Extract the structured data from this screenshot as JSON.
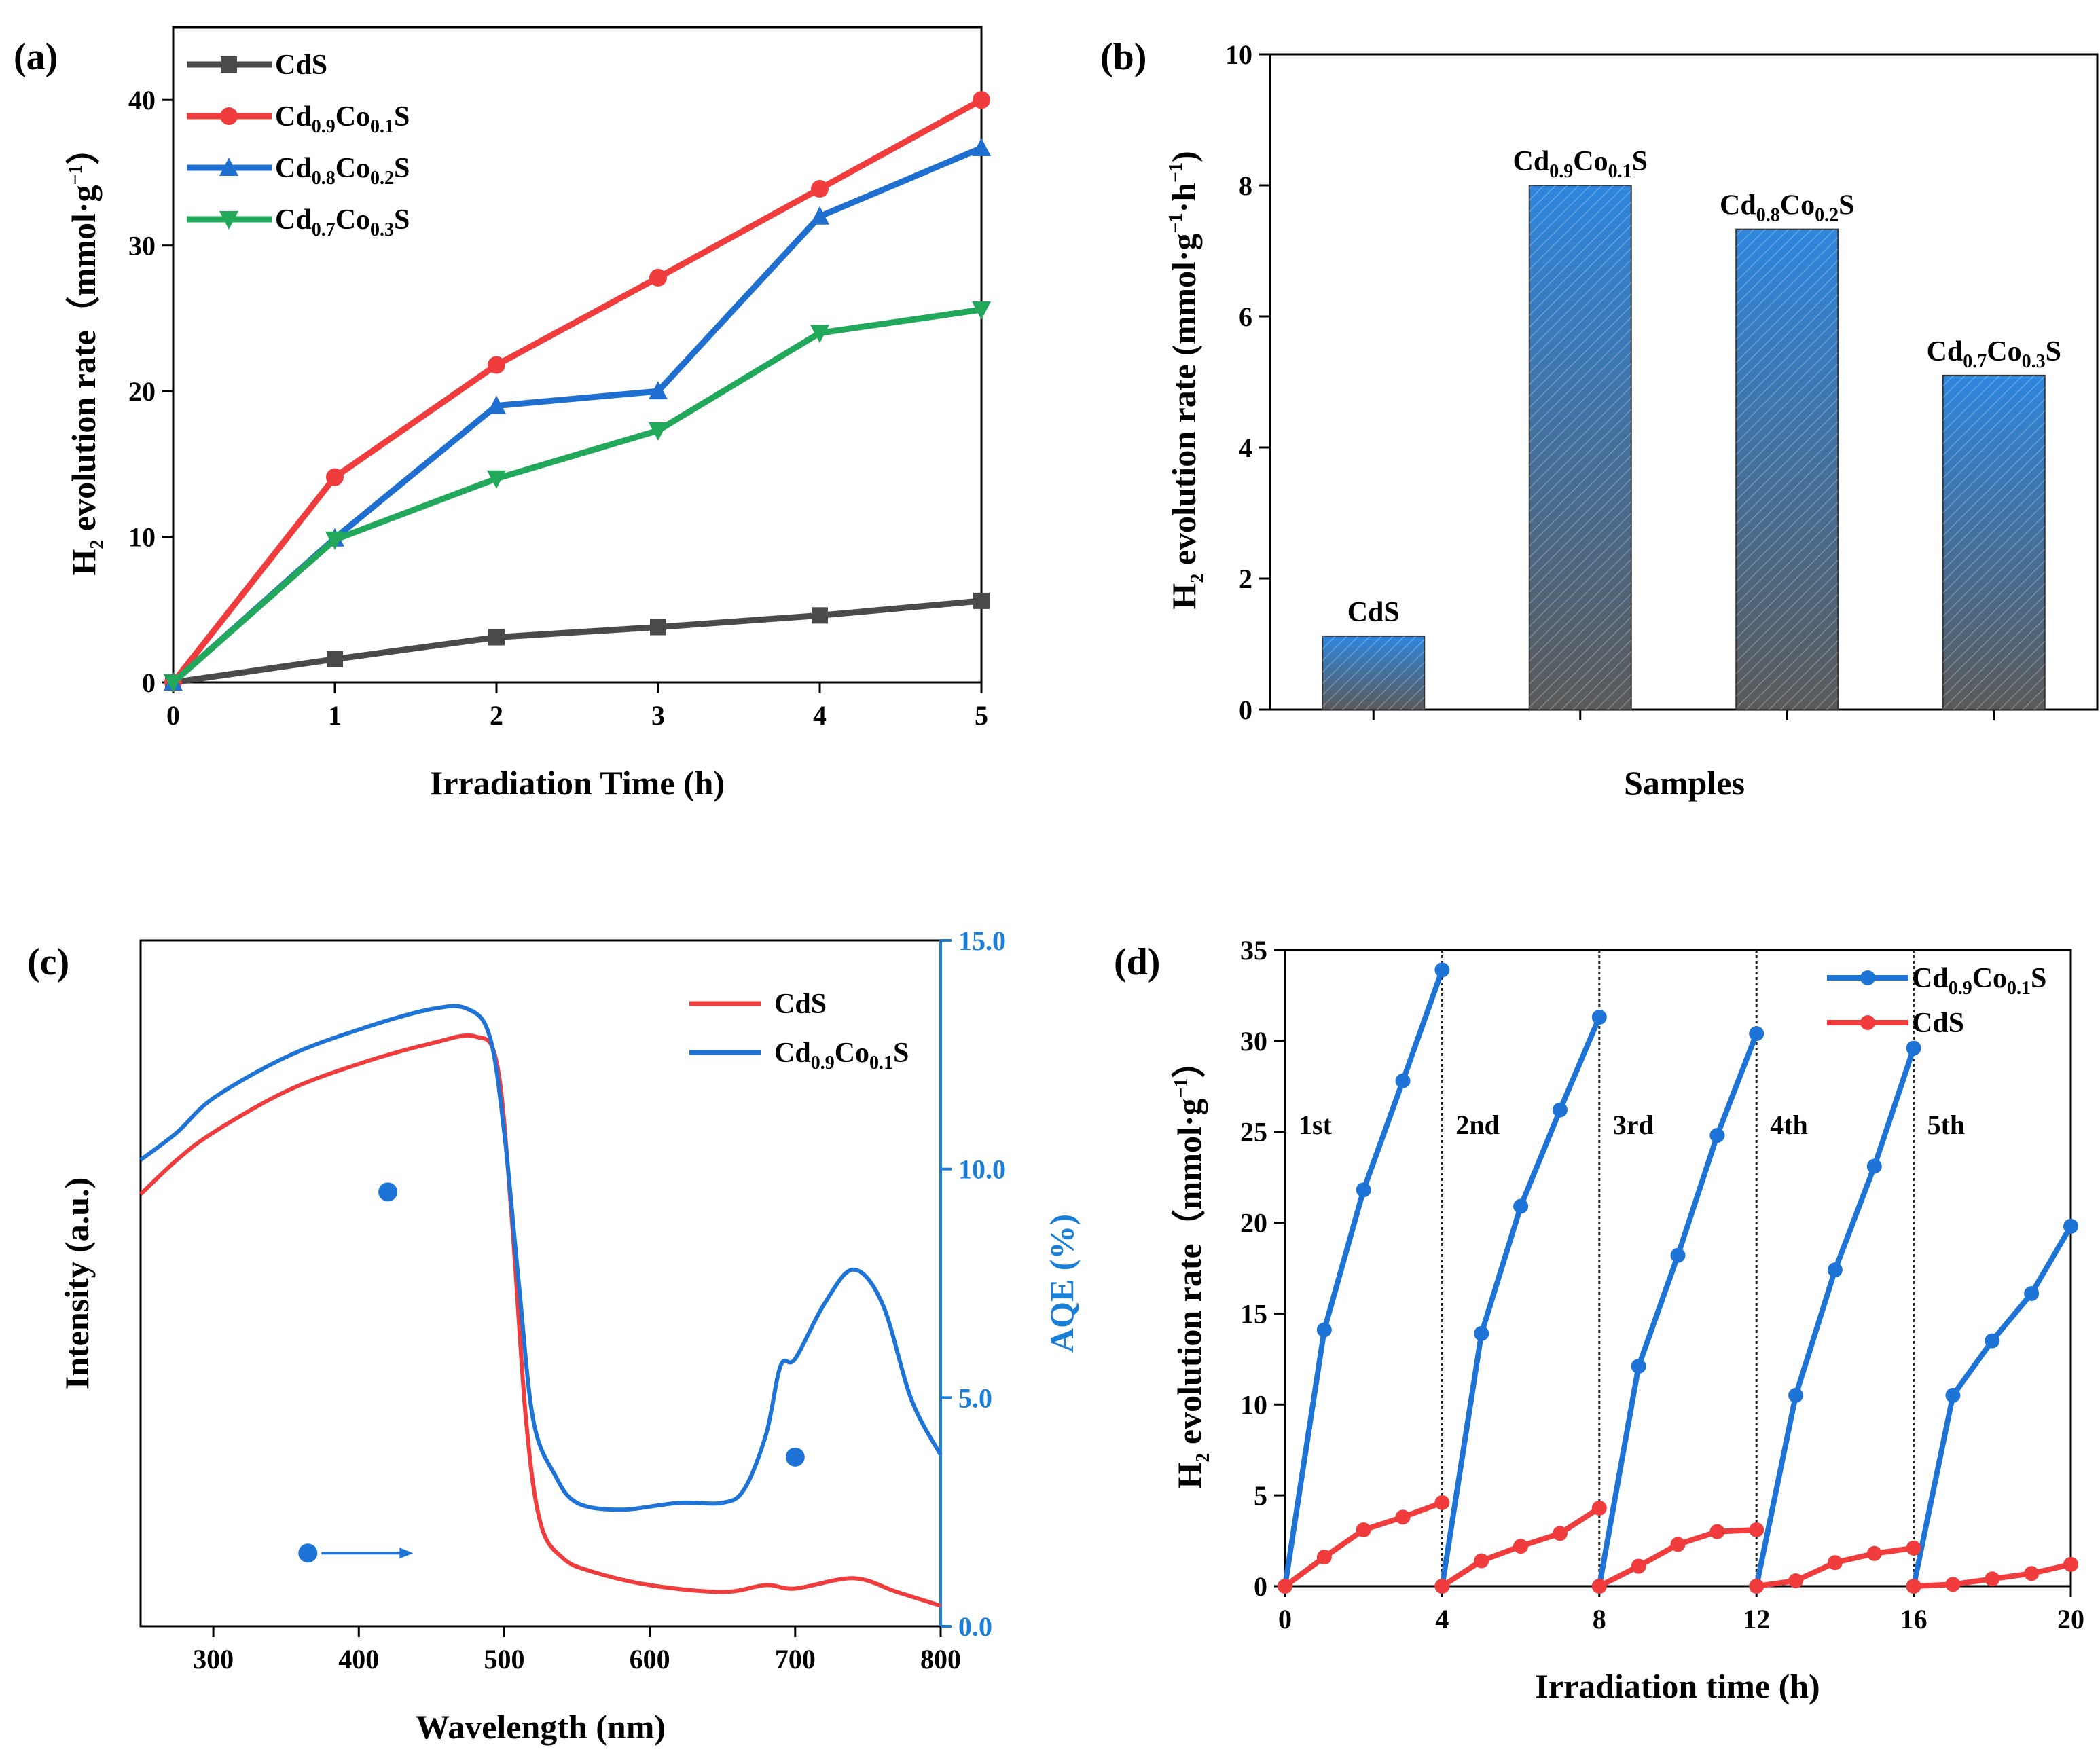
{
  "colors": {
    "cds": "#4a4a4a",
    "co01": "#f03c3c",
    "co02": "#1f6fd1",
    "co03": "#22a85a",
    "blue": "#1e74d6",
    "red": "#f03c3c",
    "aqe_axis": "#1a7fd8",
    "bar_top": "#2e86de",
    "bar_bottom": "#5a5a5a"
  },
  "chart_data": [
    {
      "panel": "(a)",
      "type": "line",
      "xlabel": "Irradiation Time (h)",
      "ylabel": "H2 evolution rate（mmol·g−1）",
      "ylabel_parts": {
        "main": "H",
        "sub": "2",
        "rest": " evolution rate（mmol·g",
        "sup": "−1",
        "end": "）"
      },
      "xlim": [
        0,
        5
      ],
      "ylim": [
        0,
        45
      ],
      "xticks": [
        "0",
        "1",
        "2",
        "3",
        "4",
        "5"
      ],
      "yticks": [
        "0",
        "10",
        "20",
        "30",
        "40"
      ],
      "x": [
        0,
        1,
        2,
        3,
        4,
        5
      ],
      "series": [
        {
          "name": "CdS",
          "legend": {
            "p1": "CdS",
            "s1": "",
            "p2": "",
            "s2": "",
            "p3": ""
          },
          "marker": "square",
          "values": [
            0,
            1.6,
            3.1,
            3.8,
            4.6,
            5.6
          ]
        },
        {
          "name": "Cd0.9Co0.1S",
          "legend": {
            "p1": "Cd",
            "s1": "0.9",
            "p2": "Co",
            "s2": "0.1",
            "p3": "S"
          },
          "marker": "circle",
          "values": [
            0,
            14.1,
            21.8,
            27.8,
            33.9,
            40.0
          ]
        },
        {
          "name": "Cd0.8Co0.2S",
          "legend": {
            "p1": "Cd",
            "s1": "0.8",
            "p2": "Co",
            "s2": "0.2",
            "p3": "S"
          },
          "marker": "triangle-up",
          "values": [
            0,
            9.9,
            19.0,
            20.0,
            32.0,
            36.7
          ]
        },
        {
          "name": "Cd0.7Co0.3S",
          "legend": {
            "p1": "Cd",
            "s1": "0.7",
            "p2": "Co",
            "s2": "0.3",
            "p3": "S"
          },
          "marker": "triangle-down",
          "values": [
            0,
            9.8,
            14.0,
            17.3,
            24.0,
            25.6
          ]
        }
      ]
    },
    {
      "panel": "(b)",
      "type": "bar",
      "xlabel": "Samples",
      "ylabel": "H2 evolution rate (mmol·g−1·h−1)",
      "ylabel_parts": {
        "main": "H",
        "sub": "2",
        "rest": " evolution rate (mmol·g",
        "sup": "−1",
        "mid": "·h",
        "sup2": "−1",
        "end": ")"
      },
      "ylim": [
        0,
        10
      ],
      "yticks": [
        "0",
        "2",
        "4",
        "6",
        "8",
        "10"
      ],
      "categories": [
        "CdS",
        "Cd0.9Co0.1S",
        "Cd0.8Co0.2S",
        "Cd0.7Co0.3S"
      ],
      "bar_labels": [
        {
          "p1": "CdS",
          "s1": "",
          "p2": "",
          "s2": "",
          "p3": ""
        },
        {
          "p1": "Cd",
          "s1": "0.9",
          "p2": "Co",
          "s2": "0.1",
          "p3": "S"
        },
        {
          "p1": "Cd",
          "s1": "0.8",
          "p2": "Co",
          "s2": "0.2",
          "p3": "S"
        },
        {
          "p1": "Cd",
          "s1": "0.7",
          "p2": "Co",
          "s2": "0.3",
          "p3": "S"
        }
      ],
      "values": [
        1.12,
        8.0,
        7.33,
        5.1
      ]
    },
    {
      "panel": "(c)",
      "type": "line",
      "xlabel": "Wavelength (nm)",
      "ylabel": "Intensity (a.u.)",
      "y2label": "AQE (%)",
      "xlim": [
        250,
        800
      ],
      "y2lim": [
        0,
        15
      ],
      "xticks": [
        "300",
        "400",
        "500",
        "600",
        "700",
        "800"
      ],
      "y2ticks": [
        "0.0",
        "5.0",
        "10.0",
        "15.0"
      ],
      "series": [
        {
          "name": "CdS",
          "legend": {
            "p1": "CdS",
            "s1": "",
            "p2": "",
            "s2": "",
            "p3": ""
          },
          "x": [
            250,
            275,
            300,
            350,
            400,
            450,
            480,
            495,
            505,
            515,
            525,
            540,
            560,
            600,
            650,
            680,
            700,
            740,
            770,
            800
          ],
          "values": [
            0.63,
            0.68,
            0.72,
            0.78,
            0.82,
            0.85,
            0.86,
            0.82,
            0.6,
            0.3,
            0.15,
            0.1,
            0.08,
            0.06,
            0.05,
            0.06,
            0.055,
            0.07,
            0.05,
            0.03
          ]
        },
        {
          "name": "Cd0.9Co0.1S",
          "legend": {
            "p1": "Cd",
            "s1": "0.9",
            "p2": "Co",
            "s2": "0.1",
            "p3": "S"
          },
          "x": [
            250,
            275,
            300,
            350,
            400,
            450,
            475,
            490,
            500,
            510,
            520,
            535,
            550,
            580,
            620,
            650,
            665,
            680,
            690,
            700,
            720,
            740,
            760,
            780,
            800
          ],
          "values": [
            0.68,
            0.72,
            0.77,
            0.83,
            0.87,
            0.9,
            0.9,
            0.86,
            0.72,
            0.5,
            0.3,
            0.22,
            0.18,
            0.17,
            0.18,
            0.18,
            0.2,
            0.28,
            0.38,
            0.39,
            0.47,
            0.52,
            0.47,
            0.33,
            0.25
          ]
        }
      ],
      "aqe_points": {
        "x": [
          420,
          700
        ],
        "values": [
          9.5,
          3.7
        ]
      },
      "arrow_marker": {
        "x": 365,
        "value": 1.6
      }
    },
    {
      "panel": "(d)",
      "type": "line",
      "xlabel": "Irradiation time (h)",
      "ylabel": "H2 evolution rate（mmol·g−1）",
      "ylabel_parts": {
        "main": "H",
        "sub": "2",
        "rest": " evolution rate（mmol·g",
        "sup": "−1",
        "end": "）"
      },
      "xlim": [
        0,
        20
      ],
      "ylim": [
        0,
        35
      ],
      "xticks": [
        "0",
        "4",
        "8",
        "12",
        "16",
        "20"
      ],
      "yticks": [
        "0",
        "5",
        "10",
        "15",
        "20",
        "25",
        "30",
        "35"
      ],
      "cycle_labels": [
        "1st",
        "2nd",
        "3rd",
        "4th",
        "5th"
      ],
      "cycle_lines_x": [
        4,
        8,
        12,
        16
      ],
      "series": [
        {
          "name": "Cd0.9Co0.1S",
          "legend": {
            "p1": "Cd",
            "s1": "0.9",
            "p2": "Co",
            "s2": "0.1",
            "p3": "S"
          },
          "cycles": [
            {
              "x": [
                0,
                1,
                2,
                3,
                4
              ],
              "values": [
                0,
                14.1,
                21.8,
                27.8,
                33.9
              ]
            },
            {
              "x": [
                4,
                5,
                6,
                7,
                8
              ],
              "values": [
                0,
                13.9,
                20.9,
                26.2,
                31.3
              ]
            },
            {
              "x": [
                8,
                9,
                10,
                11,
                12
              ],
              "values": [
                0,
                12.1,
                18.2,
                24.8,
                30.4
              ]
            },
            {
              "x": [
                12,
                13,
                14,
                15,
                16
              ],
              "values": [
                0,
                10.5,
                17.4,
                23.1,
                29.6
              ]
            },
            {
              "x": [
                16,
                17,
                18,
                19,
                20
              ],
              "values": [
                0,
                10.5,
                13.5,
                16.1,
                19.8
              ]
            }
          ]
        },
        {
          "name": "CdS",
          "legend": {
            "p1": "CdS",
            "s1": "",
            "p2": "",
            "s2": "",
            "p3": ""
          },
          "cycles": [
            {
              "x": [
                0,
                1,
                2,
                3,
                4
              ],
              "values": [
                0,
                1.6,
                3.1,
                3.8,
                4.6
              ]
            },
            {
              "x": [
                4,
                5,
                6,
                7,
                8
              ],
              "values": [
                0,
                1.4,
                2.2,
                2.9,
                4.3
              ]
            },
            {
              "x": [
                8,
                9,
                10,
                11,
                12
              ],
              "values": [
                0,
                1.1,
                2.3,
                3.0,
                3.1
              ]
            },
            {
              "x": [
                12,
                13,
                14,
                15,
                16
              ],
              "values": [
                0,
                0.3,
                1.3,
                1.8,
                2.1
              ]
            },
            {
              "x": [
                16,
                17,
                18,
                19,
                20
              ],
              "values": [
                0,
                0.1,
                0.4,
                0.7,
                1.2
              ]
            }
          ]
        }
      ]
    }
  ]
}
